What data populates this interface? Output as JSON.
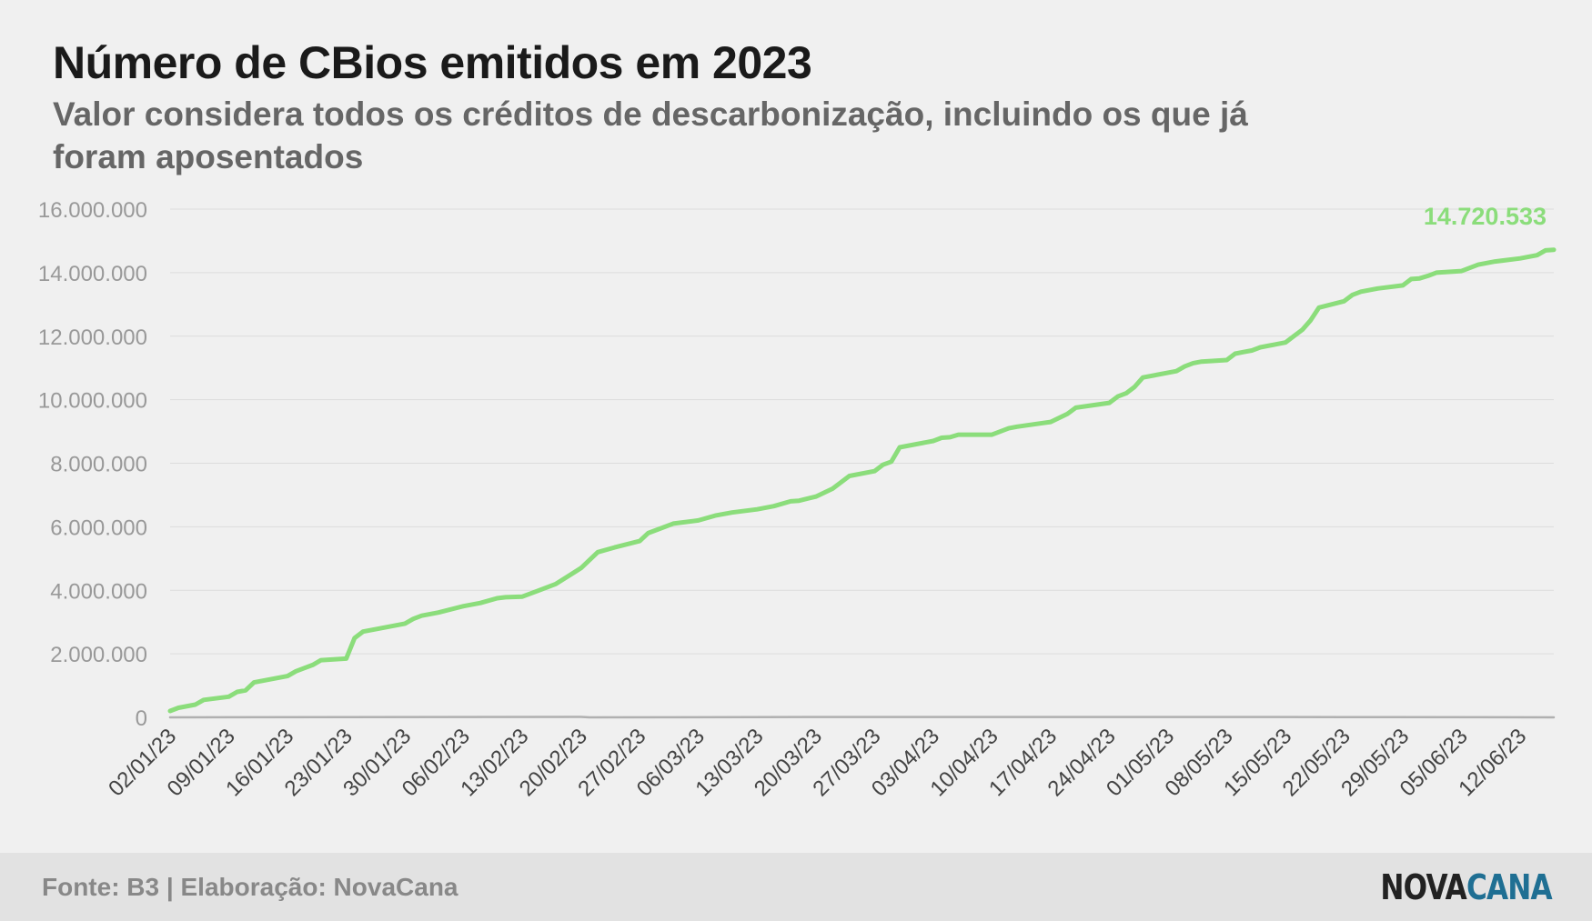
{
  "header": {
    "title": "Número de CBios emitidos em 2023",
    "subtitle": "Valor considera todos os créditos de descarbonização, incluindo os que já foram aposentados"
  },
  "footer": {
    "source": "Fonte: B3 | Elaboração: NovaCana",
    "logo_part1": "NOVA",
    "logo_part2": "CANA"
  },
  "colors": {
    "series": "#8bdd7b",
    "baseline": "#b0b0b0",
    "grid": "#dcdcdc",
    "tick_label": "#999999",
    "x_tick_label": "#444444"
  },
  "chart_data": {
    "type": "line",
    "title": "Número de CBios emitidos em 2023",
    "xlabel": "",
    "ylabel": "",
    "ylim": [
      0,
      16000000
    ],
    "xlim": [
      "2023-01-02",
      "2023-06-16"
    ],
    "grid": true,
    "y_ticks": [
      0,
      2000000,
      4000000,
      6000000,
      8000000,
      10000000,
      12000000,
      14000000,
      16000000
    ],
    "y_tick_labels": [
      "0",
      "2.000.000",
      "4.000.000",
      "6.000.000",
      "8.000.000",
      "10.000.000",
      "12.000.000",
      "14.000.000",
      "16.000.000"
    ],
    "x_ticks": [
      "2023-01-02",
      "2023-01-09",
      "2023-01-16",
      "2023-01-23",
      "2023-01-30",
      "2023-02-06",
      "2023-02-13",
      "2023-02-20",
      "2023-02-27",
      "2023-03-06",
      "2023-03-13",
      "2023-03-20",
      "2023-03-27",
      "2023-04-03",
      "2023-04-10",
      "2023-04-17",
      "2023-04-24",
      "2023-05-01",
      "2023-05-08",
      "2023-05-15",
      "2023-05-22",
      "2023-05-29",
      "2023-06-05",
      "2023-06-12"
    ],
    "x_tick_labels": [
      "02/01/23",
      "09/01/23",
      "16/01/23",
      "23/01/23",
      "30/01/23",
      "06/02/23",
      "13/02/23",
      "20/02/23",
      "27/02/23",
      "06/03/23",
      "13/03/23",
      "20/03/23",
      "27/03/23",
      "03/04/23",
      "10/04/23",
      "17/04/23",
      "24/04/23",
      "01/05/23",
      "08/05/23",
      "15/05/23",
      "22/05/23",
      "29/05/23",
      "05/06/23",
      "12/06/23"
    ],
    "end_label": "14.720.533",
    "series": [
      {
        "x": [
          "2023-01-02",
          "2023-01-03",
          "2023-01-05",
          "2023-01-06",
          "2023-01-09",
          "2023-01-10",
          "2023-01-11",
          "2023-01-12",
          "2023-01-13",
          "2023-01-16",
          "2023-01-17",
          "2023-01-18",
          "2023-01-19",
          "2023-01-20",
          "2023-01-23",
          "2023-01-24",
          "2023-01-25",
          "2023-01-27",
          "2023-01-30",
          "2023-01-31",
          "2023-02-01",
          "2023-02-03",
          "2023-02-06",
          "2023-02-08",
          "2023-02-10",
          "2023-02-11",
          "2023-02-13",
          "2023-02-15",
          "2023-02-17",
          "2023-02-20",
          "2023-02-22",
          "2023-02-24",
          "2023-02-27",
          "2023-02-28",
          "2023-03-01",
          "2023-03-03",
          "2023-03-06",
          "2023-03-08",
          "2023-03-10",
          "2023-03-13",
          "2023-03-15",
          "2023-03-17",
          "2023-03-18",
          "2023-03-20",
          "2023-03-22",
          "2023-03-24",
          "2023-03-27",
          "2023-03-28",
          "2023-03-29",
          "2023-03-30",
          "2023-04-03",
          "2023-04-04",
          "2023-04-05",
          "2023-04-06",
          "2023-04-10",
          "2023-04-11",
          "2023-04-12",
          "2023-04-13",
          "2023-04-17",
          "2023-04-19",
          "2023-04-20",
          "2023-04-24",
          "2023-04-25",
          "2023-04-26",
          "2023-04-27",
          "2023-04-28",
          "2023-05-02",
          "2023-05-03",
          "2023-05-04",
          "2023-05-05",
          "2023-05-08",
          "2023-05-09",
          "2023-05-10",
          "2023-05-11",
          "2023-05-12",
          "2023-05-15",
          "2023-05-16",
          "2023-05-17",
          "2023-05-18",
          "2023-05-19",
          "2023-05-22",
          "2023-05-23",
          "2023-05-24",
          "2023-05-26",
          "2023-05-29",
          "2023-05-30",
          "2023-05-31",
          "2023-06-01",
          "2023-06-02",
          "2023-06-05",
          "2023-06-06",
          "2023-06-07",
          "2023-06-09",
          "2023-06-12",
          "2023-06-13",
          "2023-06-14",
          "2023-06-15",
          "2023-06-16"
        ],
        "values": [
          200000,
          300000,
          400000,
          550000,
          650000,
          800000,
          850000,
          1100000,
          1150000,
          1300000,
          1450000,
          1550000,
          1650000,
          1800000,
          1850000,
          2500000,
          2700000,
          2800000,
          2950000,
          3100000,
          3200000,
          3300000,
          3500000,
          3600000,
          3750000,
          3780000,
          3800000,
          4000000,
          4200000,
          4700000,
          5200000,
          5350000,
          5550000,
          5800000,
          5900000,
          6100000,
          6200000,
          6350000,
          6450000,
          6550000,
          6650000,
          6800000,
          6820000,
          6950000,
          7200000,
          7600000,
          7750000,
          7950000,
          8050000,
          8500000,
          8700000,
          8800000,
          8820000,
          8900000,
          8900000,
          9000000,
          9100000,
          9150000,
          9300000,
          9550000,
          9750000,
          9900000,
          10100000,
          10200000,
          10400000,
          10700000,
          10900000,
          11050000,
          11150000,
          11200000,
          11250000,
          11450000,
          11500000,
          11550000,
          11650000,
          11800000,
          12000000,
          12200000,
          12500000,
          12900000,
          13100000,
          13300000,
          13400000,
          13500000,
          13600000,
          13800000,
          13820000,
          13900000,
          14000000,
          14050000,
          14150000,
          14250000,
          14350000,
          14450000,
          14500000,
          14550000,
          14700000,
          14720533
        ]
      },
      {
        "x": [
          "2023-01-02",
          "2023-02-20",
          "2023-02-21",
          "2023-03-20",
          "2023-05-22",
          "2023-06-16"
        ],
        "values": [
          0,
          15000,
          0,
          12000,
          10000,
          0
        ]
      }
    ]
  }
}
